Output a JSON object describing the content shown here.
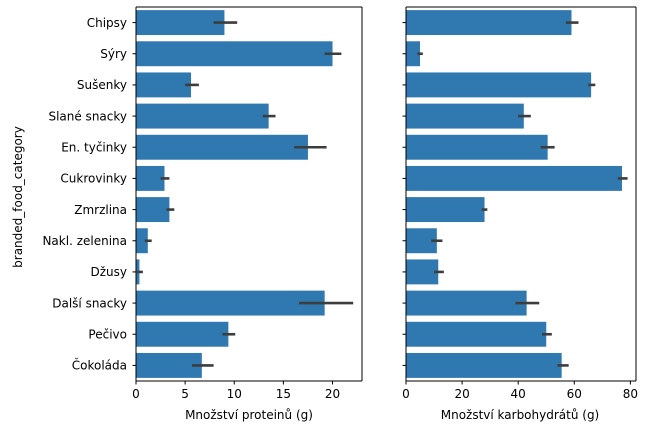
{
  "chart_data": {
    "type": "bar",
    "orientation": "horizontal",
    "ylabel": "branded_food_category",
    "categories": [
      "Chipsy",
      "Sýry",
      "Sušenky",
      "Slané snacky",
      "En. tyčinky",
      "Cukrovinky",
      "Zmrzlina",
      "Nakl. zelenina",
      "Džusy",
      "Další snacky",
      "Pečivo",
      "Čokoláda"
    ],
    "bar_color": "#2f79b0",
    "panels": [
      {
        "xlabel": "Množství proteinů (g)",
        "xlim": [
          0,
          23
        ],
        "xticks": [
          0,
          5,
          10,
          15,
          20
        ],
        "values": [
          9.0,
          20.0,
          5.6,
          13.5,
          17.5,
          2.9,
          3.4,
          1.2,
          0.35,
          19.2,
          9.4,
          6.7
        ],
        "ci_low": [
          7.9,
          19.2,
          5.0,
          12.9,
          16.1,
          2.5,
          3.1,
          0.9,
          0.1,
          16.6,
          8.8,
          5.7
        ],
        "ci_high": [
          10.3,
          20.9,
          6.4,
          14.2,
          19.4,
          3.4,
          3.9,
          1.6,
          0.7,
          22.1,
          10.1,
          7.9
        ]
      },
      {
        "xlabel": "Množství karbohydrátů (g)",
        "xlim": [
          0,
          82
        ],
        "xticks": [
          0,
          20,
          40,
          60,
          80
        ],
        "values": [
          59,
          5,
          66,
          42,
          50.5,
          77,
          28,
          11,
          11.5,
          43,
          50,
          55.5
        ],
        "ci_low": [
          57,
          4,
          65,
          40,
          48,
          75.5,
          27,
          9,
          10,
          39,
          48.5,
          54
        ],
        "ci_high": [
          61.5,
          6,
          67.5,
          44.5,
          53,
          79,
          29,
          13,
          13.5,
          47.5,
          52,
          58
        ]
      }
    ]
  }
}
